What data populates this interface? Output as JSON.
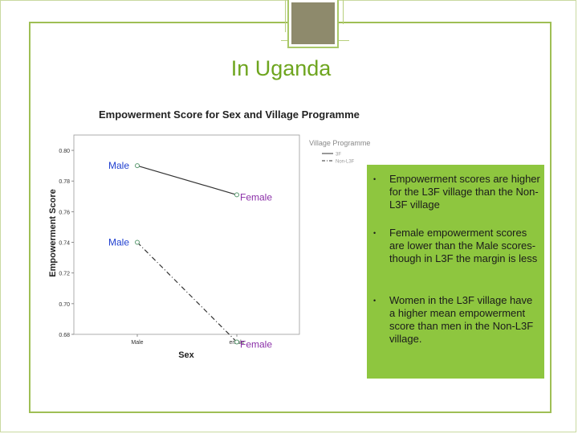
{
  "slide": {
    "title": "In Uganda",
    "bullets": [
      "Empowerment scores are higher for the L3F village than the Non-L3F village",
      "Female empowerment scores are lower than the Male scores- though in L3F the margin is less",
      "Women in the L3F village have a higher mean empowerment score than men in the Non-L3F village."
    ],
    "bullet_symbol": "•"
  },
  "colors": {
    "accent": "#6ea51f",
    "bullet_box": "#8ec63f",
    "frame": "#9fbf55",
    "annotation_blue": "#1f3fd0",
    "annotation_purple": "#8b2fa8"
  },
  "chart_data": {
    "type": "line",
    "title": "Empowerment Score for Sex and Village Programme",
    "xlabel": "Sex",
    "ylabel": "Empowerment Score",
    "categories": [
      "Male",
      "emale"
    ],
    "ylim": [
      0.68,
      0.81
    ],
    "yticks": [
      0.68,
      0.7,
      0.72,
      0.74,
      0.76,
      0.78,
      0.8
    ],
    "ytick_labels": [
      "0.68",
      "0.70",
      "0.72",
      "0.74",
      "0.76",
      "0.78",
      "0.80"
    ],
    "legend_title": "Village Programme",
    "legend_position": "right",
    "series": [
      {
        "name": "3F",
        "values": [
          0.79,
          0.771
        ],
        "dash": "solid"
      },
      {
        "name": "Non-L3F",
        "values": [
          0.74,
          0.675
        ],
        "dash": "dashdot"
      }
    ],
    "annotations": [
      {
        "text": "Male",
        "series": 0,
        "point": 0,
        "color": "blue"
      },
      {
        "text": "Female",
        "series": 0,
        "point": 1,
        "color": "purple"
      },
      {
        "text": "Male",
        "series": 1,
        "point": 0,
        "color": "blue"
      },
      {
        "text": "Female",
        "series": 1,
        "point": 1,
        "color": "purple"
      }
    ]
  }
}
